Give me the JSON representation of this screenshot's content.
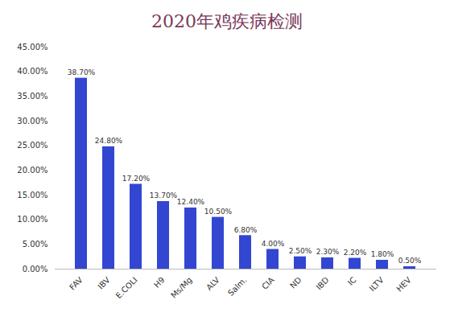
{
  "chart_data": {
    "type": "bar",
    "title": "2020年鸡疾病检测",
    "categories": [
      "FAV",
      "IBV",
      "E.COLI",
      "H9",
      "Ms/Mg",
      "ALV",
      "Salm.",
      "CIA",
      "ND",
      "IBD",
      "IC",
      "ILTV",
      "HEV"
    ],
    "values": [
      38.7,
      24.8,
      17.2,
      13.7,
      12.4,
      10.5,
      6.8,
      4.0,
      2.5,
      2.3,
      2.2,
      1.8,
      0.5
    ],
    "value_labels": [
      "38.70%",
      "24.80%",
      "17.20%",
      "13.70%",
      "12.40%",
      "10.50%",
      "6.80%",
      "4.00%",
      "2.50%",
      "2.30%",
      "2.20%",
      "1.80%",
      "0.50%"
    ],
    "color": "#3346d1",
    "ylim": [
      0,
      45
    ],
    "yticks": [
      {
        "value": 0,
        "label": "0.00%"
      },
      {
        "value": 5,
        "label": "5.00%"
      },
      {
        "value": 10,
        "label": "10.00%"
      },
      {
        "value": 15,
        "label": "15.00%"
      },
      {
        "value": 20,
        "label": "20.00%"
      },
      {
        "value": 25,
        "label": "25.00%"
      },
      {
        "value": 30,
        "label": "30.00%"
      },
      {
        "value": 35,
        "label": "35.00%"
      },
      {
        "value": 40,
        "label": "40.00%"
      },
      {
        "value": 45,
        "label": "45.00%"
      }
    ],
    "grid": false,
    "data_labels": true
  }
}
